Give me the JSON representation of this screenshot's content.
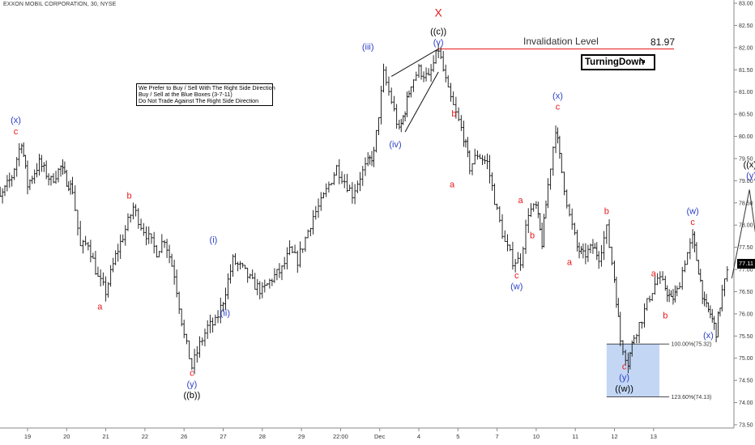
{
  "header": {
    "symbol": "EXXON MOBIL CORPORATION",
    "interval": "30",
    "exchange": "NYSE",
    "display": "EXXON MOBIL CORPORATION, 30, NYSE"
  },
  "notes_box": {
    "lines": [
      "We Prefer to Buy / Sell With The Right Side Direction",
      "Buy / Sell at the Blue Boxes (3-7-11)",
      "Do Not Trade Against The Right Side Direction"
    ]
  },
  "invalidation": {
    "label": "Invalidation Level",
    "value": "81.97",
    "price": 81.97
  },
  "signal": {
    "label": "TurningDown",
    "arrow": "↘"
  },
  "last_price_tag": "77.11",
  "colors": {
    "red": "#e8191a",
    "blue": "#2b3fc8",
    "black": "#000000",
    "box": "#b8d0f3",
    "grid": "#d9d9d9"
  },
  "chart_data": {
    "type": "ohlc-bar",
    "title": "EXXON MOBIL CORPORATION, 30, NYSE",
    "ylim": [
      73.5,
      83.0
    ],
    "yticks": [
      "83.00",
      "82.50",
      "82.00",
      "81.50",
      "81.00",
      "80.50",
      "80.00",
      "79.50",
      "79.00",
      "78.50",
      "78.00",
      "77.50",
      "77.00",
      "76.50",
      "76.00",
      "75.50",
      "75.00",
      "74.50",
      "74.00",
      "73.50"
    ],
    "x_ticks": [
      {
        "label": "19",
        "x": 19
      },
      {
        "label": "20",
        "x": 20
      },
      {
        "label": "21",
        "x": 21
      },
      {
        "label": "22",
        "x": 22
      },
      {
        "label": "26",
        "x": 23
      },
      {
        "label": "27",
        "x": 24
      },
      {
        "label": "28",
        "x": 25
      },
      {
        "label": "29",
        "x": 26
      },
      {
        "label": "22:00",
        "x": 27
      },
      {
        "label": "Dec",
        "x": 28
      },
      {
        "label": "4",
        "x": 29
      },
      {
        "label": "5",
        "x": 30
      },
      {
        "label": "7",
        "x": 31
      },
      {
        "label": "10",
        "x": 32
      },
      {
        "label": "11",
        "x": 33
      },
      {
        "label": "12",
        "x": 34
      },
      {
        "label": "13",
        "x": 35
      }
    ],
    "price_path": [
      [
        18.0,
        78.9
      ],
      [
        18.3,
        78.6
      ],
      [
        18.6,
        79.1
      ],
      [
        18.85,
        79.9
      ],
      [
        19.0,
        78.9
      ],
      [
        19.3,
        79.4
      ],
      [
        19.6,
        79.0
      ],
      [
        19.85,
        79.3
      ],
      [
        20.0,
        79.0
      ],
      [
        20.15,
        78.8
      ],
      [
        20.35,
        77.5
      ],
      [
        20.55,
        77.6
      ],
      [
        20.8,
        76.8
      ],
      [
        21.0,
        76.5
      ],
      [
        21.25,
        77.3
      ],
      [
        21.5,
        77.9
      ],
      [
        21.7,
        78.4
      ],
      [
        21.9,
        78.0
      ],
      [
        22.1,
        77.7
      ],
      [
        22.3,
        77.4
      ],
      [
        22.5,
        77.7
      ],
      [
        22.75,
        76.9
      ],
      [
        23.0,
        75.5
      ],
      [
        23.2,
        74.8
      ],
      [
        23.4,
        75.3
      ],
      [
        23.6,
        75.7
      ],
      [
        23.8,
        75.8
      ],
      [
        24.0,
        76.3
      ],
      [
        24.25,
        77.2
      ],
      [
        24.5,
        77.0
      ],
      [
        24.75,
        76.7
      ],
      [
        25.0,
        76.5
      ],
      [
        25.25,
        76.8
      ],
      [
        25.5,
        77.0
      ],
      [
        25.7,
        77.4
      ],
      [
        25.9,
        77.2
      ],
      [
        26.1,
        77.7
      ],
      [
        26.3,
        78.2
      ],
      [
        26.5,
        78.5
      ],
      [
        26.7,
        78.9
      ],
      [
        26.9,
        79.3
      ],
      [
        27.1,
        79.0
      ],
      [
        27.3,
        78.7
      ],
      [
        27.5,
        79.1
      ],
      [
        27.7,
        79.4
      ],
      [
        27.85,
        79.6
      ],
      [
        28.1,
        81.4
      ],
      [
        28.3,
        80.8
      ],
      [
        28.5,
        80.1
      ],
      [
        28.65,
        80.6
      ],
      [
        28.8,
        81.2
      ],
      [
        29.0,
        81.5
      ],
      [
        29.25,
        81.3
      ],
      [
        29.5,
        81.97
      ],
      [
        29.75,
        81.0
      ],
      [
        29.95,
        80.5
      ],
      [
        30.15,
        80.0
      ],
      [
        30.3,
        79.3
      ],
      [
        30.5,
        79.6
      ],
      [
        30.75,
        79.4
      ],
      [
        31.0,
        78.3
      ],
      [
        31.2,
        77.6
      ],
      [
        31.4,
        77.2
      ],
      [
        31.6,
        77.2
      ],
      [
        31.8,
        78.3
      ],
      [
        32.0,
        78.4
      ],
      [
        32.15,
        77.6
      ],
      [
        32.3,
        78.9
      ],
      [
        32.5,
        80.2
      ],
      [
        32.65,
        79.2
      ],
      [
        32.85,
        78.2
      ],
      [
        33.05,
        77.5
      ],
      [
        33.2,
        77.3
      ],
      [
        33.45,
        77.5
      ],
      [
        33.6,
        77.3
      ],
      [
        33.8,
        77.9
      ],
      [
        34.0,
        76.8
      ],
      [
        34.15,
        75.4
      ],
      [
        34.35,
        74.9
      ],
      [
        34.5,
        75.5
      ],
      [
        34.7,
        75.9
      ],
      [
        34.9,
        76.4
      ],
      [
        35.1,
        76.8
      ],
      [
        35.3,
        76.6
      ],
      [
        35.45,
        76.3
      ],
      [
        35.6,
        76.5
      ],
      [
        35.8,
        77.2
      ],
      [
        36.0,
        77.7
      ],
      [
        36.15,
        77.0
      ],
      [
        36.3,
        76.2
      ],
      [
        36.45,
        76.0
      ],
      [
        36.6,
        75.6
      ],
      [
        36.75,
        76.5
      ],
      [
        36.95,
        77.1
      ]
    ],
    "projection": [
      [
        37.0,
        76.8
      ],
      [
        37.45,
        78.8
      ],
      [
        37.95,
        75.6
      ]
    ],
    "channel": {
      "lower": [
        [
          28.65,
          80.1
        ],
        [
          29.5,
          81.45
        ]
      ],
      "upper": [
        [
          28.3,
          81.35
        ],
        [
          29.5,
          81.97
        ]
      ]
    },
    "blue_box": {
      "x0": 33.8,
      "x1": 35.15,
      "ytop": 75.32,
      "ybot": 74.13
    },
    "fib_levels": [
      {
        "price": 75.32,
        "label": "100.00%(75.32)"
      },
      {
        "price": 74.13,
        "label": "123.60%(74.13)"
      }
    ],
    "annotations": [
      {
        "text": "(x)",
        "x": 18.7,
        "price": 80.3,
        "color": "blue"
      },
      {
        "text": "c",
        "x": 18.7,
        "price": 80.05,
        "color": "red"
      },
      {
        "text": "a",
        "x": 20.85,
        "price": 76.1,
        "color": "red"
      },
      {
        "text": "b",
        "x": 21.6,
        "price": 78.6,
        "color": "red"
      },
      {
        "text": "(i)",
        "x": 23.75,
        "price": 77.6,
        "color": "blue"
      },
      {
        "text": "(ii)",
        "x": 24.05,
        "price": 75.95,
        "color": "blue"
      },
      {
        "text": "c",
        "x": 23.2,
        "price": 74.6,
        "color": "red"
      },
      {
        "text": "(y)",
        "x": 23.2,
        "price": 74.35,
        "color": "blue"
      },
      {
        "text": "((b))",
        "x": 23.2,
        "price": 74.1,
        "color": "black"
      },
      {
        "text": "(iii)",
        "x": 27.7,
        "price": 81.95,
        "color": "blue"
      },
      {
        "text": "(iv)",
        "x": 28.4,
        "price": 79.75,
        "color": "blue"
      },
      {
        "text": "(v)",
        "x": 29.5,
        "price": 82.05,
        "color": "blue"
      },
      {
        "text": "((c))",
        "x": 29.5,
        "price": 82.3,
        "color": "black"
      },
      {
        "text": "X",
        "x": 29.5,
        "price": 82.7,
        "color": "red",
        "big": true
      },
      {
        "text": "b",
        "x": 29.9,
        "price": 80.45,
        "color": "red"
      },
      {
        "text": "a",
        "x": 29.85,
        "price": 78.85,
        "color": "red"
      },
      {
        "text": "a",
        "x": 31.6,
        "price": 78.5,
        "color": "red"
      },
      {
        "text": "b",
        "x": 31.9,
        "price": 77.7,
        "color": "red"
      },
      {
        "text": "c",
        "x": 31.5,
        "price": 76.8,
        "color": "red"
      },
      {
        "text": "(w)",
        "x": 31.5,
        "price": 76.55,
        "color": "blue"
      },
      {
        "text": "(x)",
        "x": 32.55,
        "price": 80.85,
        "color": "blue"
      },
      {
        "text": "c",
        "x": 32.55,
        "price": 80.6,
        "color": "red"
      },
      {
        "text": "a",
        "x": 32.85,
        "price": 77.1,
        "color": "red"
      },
      {
        "text": "b",
        "x": 33.8,
        "price": 78.25,
        "color": "red"
      },
      {
        "text": "a",
        "x": 35.0,
        "price": 76.85,
        "color": "red"
      },
      {
        "text": "b",
        "x": 35.3,
        "price": 75.9,
        "color": "red"
      },
      {
        "text": "(w)",
        "x": 36.0,
        "price": 78.25,
        "color": "blue"
      },
      {
        "text": "c",
        "x": 36.0,
        "price": 78.0,
        "color": "red"
      },
      {
        "text": "(x)",
        "x": 36.4,
        "price": 75.45,
        "color": "blue"
      },
      {
        "text": "c",
        "x": 34.25,
        "price": 74.75,
        "color": "red"
      },
      {
        "text": "(y)",
        "x": 34.25,
        "price": 74.5,
        "color": "blue"
      },
      {
        "text": "((w))",
        "x": 34.25,
        "price": 74.25,
        "color": "black"
      },
      {
        "text": "((x))",
        "x": 37.5,
        "price": 79.3,
        "color": "black"
      },
      {
        "text": "(y)",
        "x": 37.5,
        "price": 79.05,
        "color": "blue"
      }
    ]
  }
}
